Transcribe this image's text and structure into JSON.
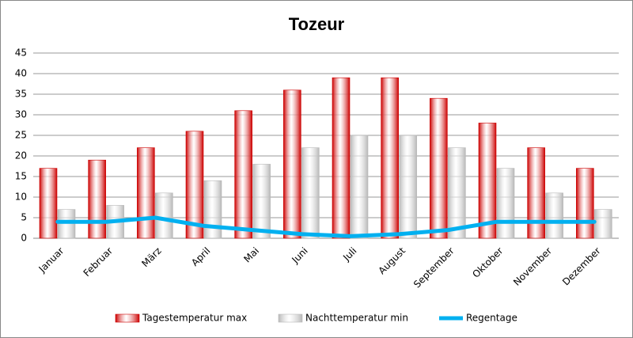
{
  "chart_data": {
    "type": "bar",
    "title": "Tozeur",
    "categories": [
      "Januar",
      "Februar",
      "März",
      "April",
      "Mai",
      "Juni",
      "Juli",
      "August",
      "September",
      "Oktober",
      "November",
      "Dezember"
    ],
    "series": [
      {
        "name": "Tagestemperatur max",
        "color": "#cc0000",
        "values": [
          17,
          19,
          22,
          26,
          31,
          36,
          39,
          39,
          34,
          28,
          22,
          17
        ]
      },
      {
        "name": "Nachttemperatur min",
        "color": "#b8b8b8",
        "values": [
          7,
          8,
          11,
          14,
          18,
          22,
          25,
          25,
          22,
          17,
          11,
          7
        ]
      },
      {
        "name": "Regentage",
        "color": "#00b0f0",
        "type": "line",
        "values": [
          4,
          4,
          5,
          3,
          2,
          1,
          0.5,
          1,
          2,
          4,
          4,
          4
        ]
      }
    ],
    "ylim": [
      0,
      45
    ],
    "yticks": [
      0,
      5,
      10,
      15,
      20,
      25,
      30,
      35,
      40,
      45
    ],
    "grid": true,
    "legend": "bottom"
  }
}
